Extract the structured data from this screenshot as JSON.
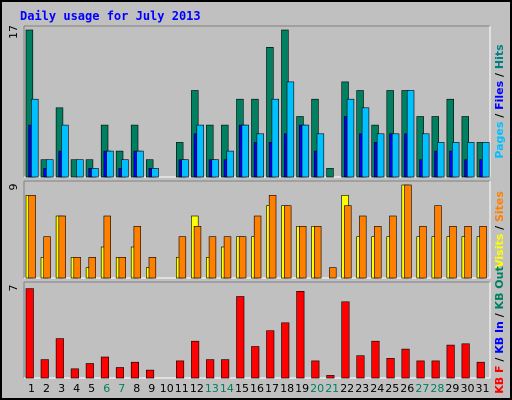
{
  "chart_data": {
    "type": "bar",
    "title": "Daily usage for July 2013",
    "x": [
      "1",
      "2",
      "3",
      "4",
      "5",
      "6",
      "7",
      "8",
      "9",
      "10",
      "11",
      "12",
      "13",
      "14",
      "15",
      "16",
      "17",
      "18",
      "19",
      "20",
      "21",
      "22",
      "23",
      "24",
      "25",
      "26",
      "27",
      "28",
      "29",
      "30",
      "31"
    ],
    "weekend_days": [
      "6",
      "7",
      "13",
      "14",
      "20",
      "21",
      "27",
      "28"
    ],
    "panels": [
      {
        "name": "hits-files-pages",
        "y_max_label": "17",
        "ylim": [
          0,
          17
        ],
        "right_label": [
          {
            "text": "Pages",
            "color": "#00c0ff"
          },
          {
            "text": " / ",
            "color": "#000000"
          },
          {
            "text": "Files",
            "color": "#0000ff"
          },
          {
            "text": " / ",
            "color": "#000000"
          },
          {
            "text": "Hits",
            "color": "#008080"
          }
        ],
        "series": [
          {
            "name": "Hits",
            "color": "#008060",
            "values": [
              17,
              2,
              8,
              2,
              2,
              6,
              3,
              6,
              2,
              0,
              4,
              10,
              6,
              6,
              9,
              9,
              15,
              17,
              7,
              9,
              1,
              11,
              10,
              6,
              10,
              10,
              7,
              7,
              9,
              7,
              4
            ]
          },
          {
            "name": "Files",
            "color": "#0000ff",
            "values": [
              6,
              1,
              3,
              0,
              1,
              3,
              1,
              3,
              1,
              0,
              2,
              5,
              2,
              2,
              6,
              4,
              4,
              5,
              6,
              3,
              0,
              7,
              5,
              4,
              5,
              5,
              2,
              3,
              3,
              2,
              2
            ]
          },
          {
            "name": "Pages",
            "color": "#00c0ff",
            "values": [
              9,
              2,
              6,
              2,
              1,
              3,
              2,
              3,
              1,
              0,
              2,
              6,
              2,
              3,
              6,
              5,
              9,
              11,
              6,
              5,
              0,
              9,
              8,
              5,
              5,
              10,
              5,
              4,
              4,
              4,
              4
            ]
          }
        ]
      },
      {
        "name": "visits-sites",
        "y_max_label": "9",
        "ylim": [
          0,
          9
        ],
        "right_label": [
          {
            "text": "Visits",
            "color": "#ffff00"
          },
          {
            "text": " / ",
            "color": "#000000"
          },
          {
            "text": "Sites",
            "color": "#ff8000"
          }
        ],
        "series": [
          {
            "name": "Visits",
            "color": "#ffff00",
            "values": [
              8,
              2,
              6,
              2,
              1,
              3,
              2,
              3,
              1,
              0,
              2,
              6,
              2,
              3,
              4,
              4,
              7,
              7,
              5,
              5,
              0,
              8,
              4,
              4,
              4,
              9,
              4,
              4,
              4,
              4,
              4
            ]
          },
          {
            "name": "Sites",
            "color": "#ff8000",
            "values": [
              8,
              4,
              6,
              2,
              2,
              6,
              2,
              5,
              2,
              0,
              4,
              5,
              4,
              4,
              4,
              6,
              8,
              7,
              5,
              5,
              1,
              7,
              6,
              5,
              6,
              9,
              5,
              7,
              5,
              5,
              5
            ]
          }
        ]
      },
      {
        "name": "kbytes",
        "y_max_label": "7",
        "ylim": [
          0,
          7
        ],
        "right_label": [
          {
            "text": "KB F",
            "color": "#ff0000"
          },
          {
            "text": " / ",
            "color": "#000000"
          },
          {
            "text": "KB In",
            "color": "#0000ff"
          },
          {
            "text": " / ",
            "color": "#000000"
          },
          {
            "text": "KB Out",
            "color": "#008060"
          }
        ],
        "series": [
          {
            "name": "KB F",
            "color": "#ff0000",
            "values": [
              6.8,
              1.4,
              3.0,
              0.7,
              1.1,
              1.6,
              0.8,
              1.2,
              0.6,
              0,
              1.3,
              2.8,
              1.4,
              1.4,
              6.2,
              2.4,
              3.6,
              4.2,
              6.6,
              1.3,
              0.2,
              5.8,
              1.7,
              2.8,
              1.5,
              2.2,
              1.3,
              1.3,
              2.5,
              2.6,
              1.2
            ]
          }
        ]
      }
    ]
  }
}
